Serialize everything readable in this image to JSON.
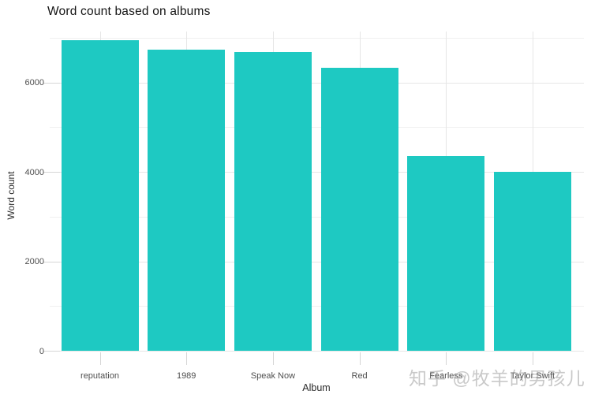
{
  "chart_data": {
    "type": "bar",
    "title": "Word count based on albums",
    "xlabel": "Album",
    "ylabel": "Word count",
    "categories": [
      "reputation",
      "1989",
      "Speak Now",
      "Red",
      "Fearless",
      "Taylor Swift"
    ],
    "values": [
      6940,
      6730,
      6680,
      6330,
      4350,
      4000
    ],
    "ylim": [
      0,
      7140
    ],
    "yticks_major": [
      0,
      2000,
      4000,
      6000
    ],
    "yticks_minor": [
      1000,
      3000,
      5000,
      7000
    ],
    "ytick_labels": [
      "0",
      "2000",
      "4000",
      "6000"
    ],
    "bar_color": "#1EC9C2",
    "grid": true,
    "legend_position": "none",
    "background": "#ffffff"
  },
  "watermark": {
    "text": "知乎 @牧羊的男孩儿"
  }
}
